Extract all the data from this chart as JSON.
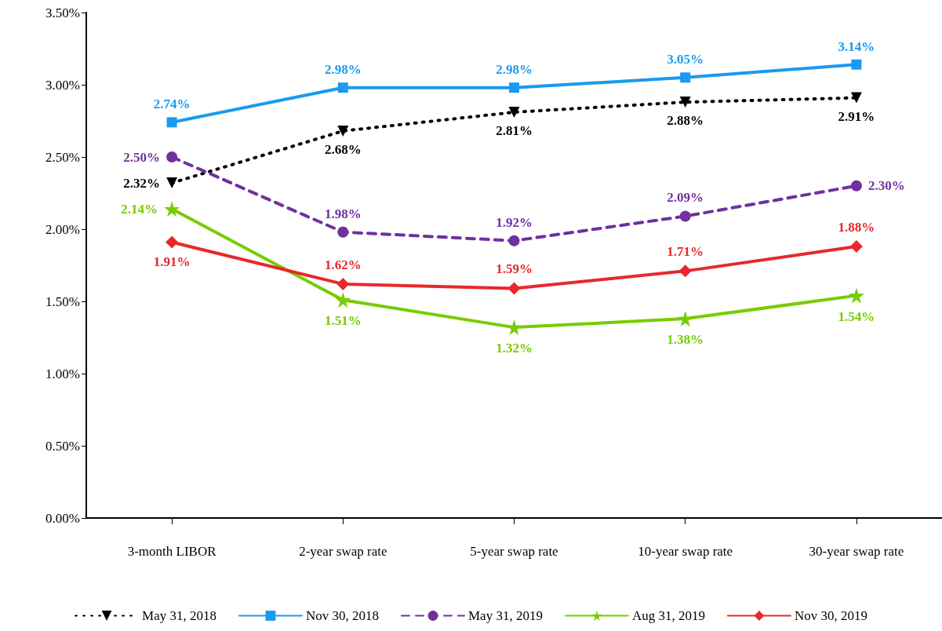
{
  "chart_data": {
    "type": "line",
    "categories": [
      "3-month LIBOR",
      "2-year swap rate",
      "5-year swap rate",
      "10-year swap rate",
      "30-year swap rate"
    ],
    "series": [
      {
        "name": "May 31, 2018",
        "color": "#000000",
        "marker": "triangle",
        "line_style": "dotted",
        "values": [
          2.32,
          2.68,
          2.81,
          2.88,
          2.91
        ],
        "value_labels": [
          "2.32%",
          "2.68%",
          "2.81%",
          "2.88%",
          "2.91%"
        ]
      },
      {
        "name": "Nov 30, 2018",
        "color": "#1a9af0",
        "marker": "square",
        "line_style": "solid",
        "values": [
          2.74,
          2.98,
          2.98,
          3.05,
          3.14
        ],
        "value_labels": [
          "2.74%",
          "2.98%",
          "2.98%",
          "3.05%",
          "3.14%"
        ]
      },
      {
        "name": "May 31, 2019",
        "color": "#7030a0",
        "marker": "circle",
        "line_style": "dashed",
        "values": [
          2.5,
          1.98,
          1.92,
          2.09,
          2.3
        ],
        "value_labels": [
          "2.50%",
          "1.98%",
          "1.92%",
          "2.09%",
          "2.30%"
        ]
      },
      {
        "name": "Aug 31, 2019",
        "color": "#77cc00",
        "marker": "star",
        "line_style": "solid",
        "values": [
          2.14,
          1.51,
          1.32,
          1.38,
          1.54
        ],
        "value_labels": [
          "2.14%",
          "1.51%",
          "1.32%",
          "1.38%",
          "1.54%"
        ]
      },
      {
        "name": "Nov 30, 2019",
        "color": "#e8282b",
        "marker": "diamond",
        "line_style": "solid",
        "values": [
          1.91,
          1.62,
          1.59,
          1.71,
          1.88
        ],
        "value_labels": [
          "1.91%",
          "1.62%",
          "1.59%",
          "1.71%",
          "1.88%"
        ]
      }
    ],
    "ylim": [
      0,
      3.5
    ],
    "yticks": [
      {
        "value": 0,
        "label": "0.00%"
      },
      {
        "value": 0.5,
        "label": "0.50%"
      },
      {
        "value": 1,
        "label": "1.00%"
      },
      {
        "value": 1.5,
        "label": "1.50%"
      },
      {
        "value": 2,
        "label": "2.00%"
      },
      {
        "value": 2.5,
        "label": "2.50%"
      },
      {
        "value": 3,
        "label": "3.00%"
      },
      {
        "value": 3.5,
        "label": "3.50%"
      }
    ],
    "grid": false,
    "legend": "bottom"
  }
}
